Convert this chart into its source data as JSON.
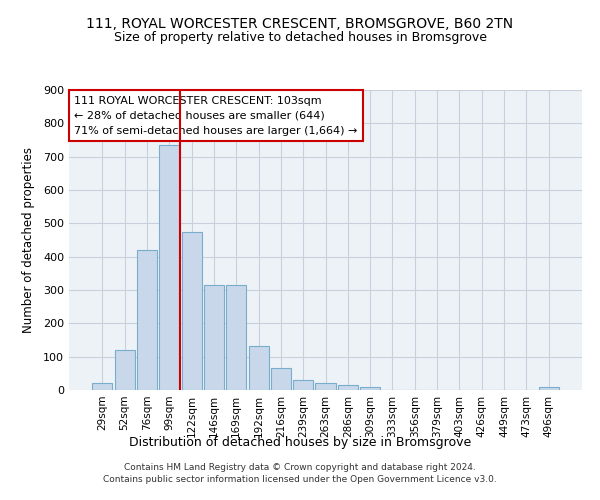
{
  "title_line1": "111, ROYAL WORCESTER CRESCENT, BROMSGROVE, B60 2TN",
  "title_line2": "Size of property relative to detached houses in Bromsgrove",
  "xlabel": "Distribution of detached houses by size in Bromsgrove",
  "ylabel": "Number of detached properties",
  "bar_labels": [
    "29sqm",
    "52sqm",
    "76sqm",
    "99sqm",
    "122sqm",
    "146sqm",
    "169sqm",
    "192sqm",
    "216sqm",
    "239sqm",
    "263sqm",
    "286sqm",
    "309sqm",
    "333sqm",
    "356sqm",
    "379sqm",
    "403sqm",
    "426sqm",
    "449sqm",
    "473sqm",
    "496sqm"
  ],
  "bar_values": [
    20,
    120,
    420,
    735,
    475,
    315,
    315,
    132,
    65,
    30,
    22,
    14,
    8,
    0,
    0,
    0,
    0,
    0,
    0,
    0,
    8
  ],
  "bar_color": "#c8d8ea",
  "bar_edge_color": "#7aaccc",
  "red_line_x": 3.5,
  "annotation_text": "111 ROYAL WORCESTER CRESCENT: 103sqm\n← 28% of detached houses are smaller (644)\n71% of semi-detached houses are larger (1,664) →",
  "annotation_box_color": "#ffffff",
  "annotation_border_color": "#cc0000",
  "grid_color": "#c8d0dc",
  "background_color": "#edf2f7",
  "ylim": [
    0,
    900
  ],
  "yticks": [
    0,
    100,
    200,
    300,
    400,
    500,
    600,
    700,
    800,
    900
  ],
  "footer_line1": "Contains HM Land Registry data © Crown copyright and database right 2024.",
  "footer_line2": "Contains public sector information licensed under the Open Government Licence v3.0."
}
